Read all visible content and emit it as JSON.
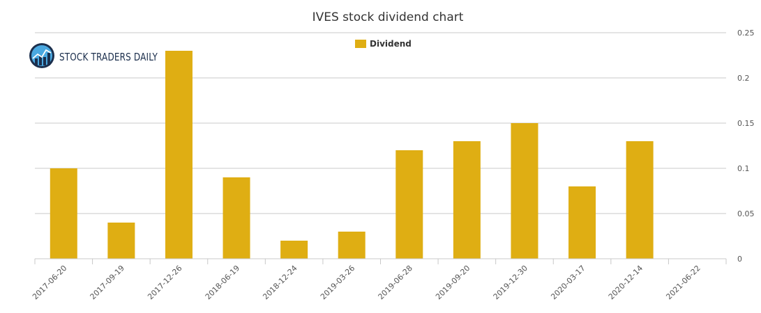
{
  "chart_data": {
    "type": "bar",
    "title": "IVES stock dividend chart",
    "categories": [
      "2017-06-20",
      "2017-09-19",
      "2017-12-26",
      "2018-06-19",
      "2018-12-24",
      "2019-03-26",
      "2019-06-28",
      "2019-09-20",
      "2019-12-30",
      "2020-03-17",
      "2020-12-14",
      "2021-06-22"
    ],
    "series": [
      {
        "name": "Dividend",
        "values": [
          0.1,
          0.04,
          0.23,
          0.09,
          0.02,
          0.03,
          0.12,
          0.13,
          0.15,
          0.08,
          0.13,
          0
        ]
      }
    ],
    "ylim": [
      0,
      0.25
    ],
    "yticks": [
      "0",
      "0.05",
      "0.1",
      "0.15",
      "0.2",
      "0.25"
    ],
    "y_axis_side": "right",
    "grid": true,
    "legend_position": "top-center",
    "bar_color": "#dfae13"
  },
  "logo": {
    "text": "STOCK TRADERS DAILY"
  }
}
